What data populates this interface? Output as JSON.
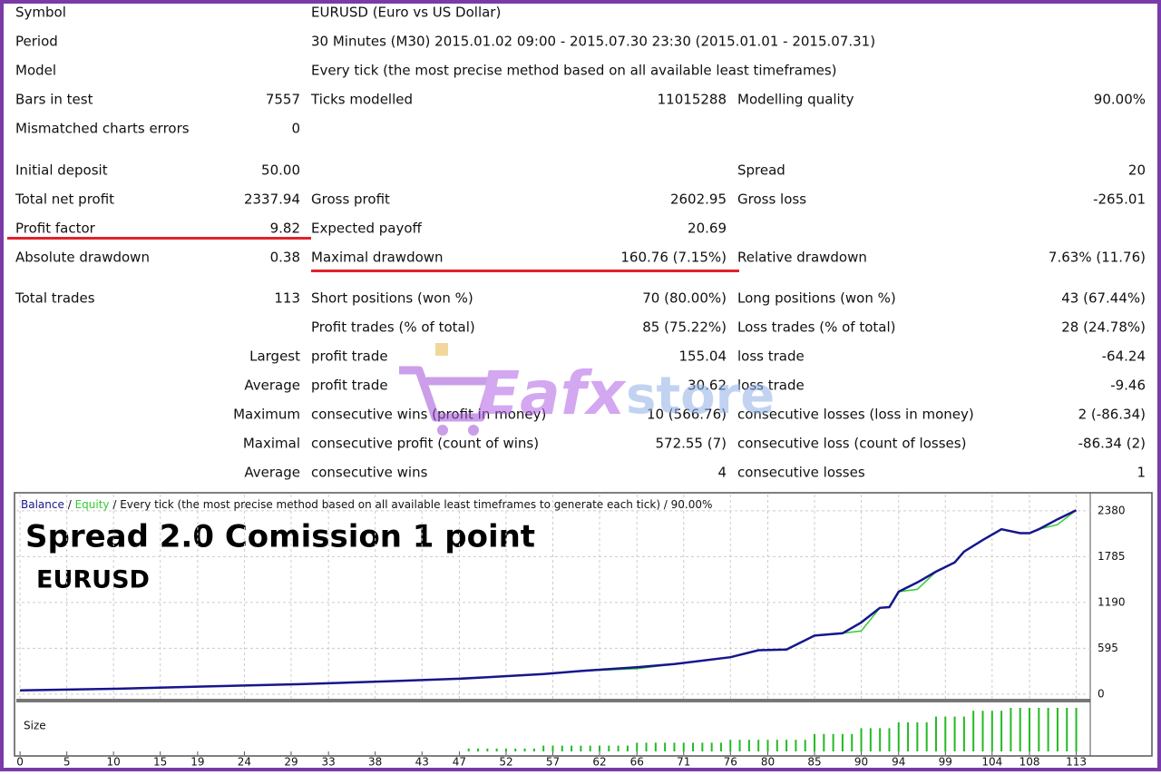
{
  "report": {
    "sections": [
      [
        [
          "Symbol",
          null,
          "EURUSD (Euro vs US Dollar)",
          null,
          null,
          null
        ],
        [
          "Period",
          null,
          "30 Minutes (M30) 2015.01.02 09:00 - 2015.07.30 23:30 (2015.01.01 - 2015.07.31)",
          null,
          null,
          null
        ],
        [
          "Model",
          null,
          "Every tick (the most precise method based on all available least timeframes)",
          null,
          null,
          null
        ],
        [
          "Bars in test",
          "7557",
          "Ticks modelled",
          "11015288",
          "Modelling quality",
          "90.00%"
        ],
        [
          "Mismatched charts errors",
          "0",
          null,
          null,
          null,
          null
        ]
      ],
      [
        [
          "Initial deposit",
          "50.00",
          null,
          null,
          "Spread",
          "20"
        ],
        [
          "Total net profit",
          "2337.94",
          "Gross profit",
          "2602.95",
          "Gross loss",
          "-265.01"
        ],
        [
          "Profit factor",
          "9.82",
          "Expected payoff",
          "20.69",
          null,
          null
        ],
        [
          "Absolute drawdown",
          "0.38",
          "Maximal drawdown",
          "160.76 (7.15%)",
          "Relative drawdown",
          "7.63% (11.76)"
        ]
      ],
      [
        [
          "Total trades",
          "113",
          "Short positions (won %)",
          "70 (80.00%)",
          "Long positions (won %)",
          "43 (67.44%)"
        ],
        [
          null,
          null,
          "Profit trades (% of total)",
          "85 (75.22%)",
          "Loss trades (% of total)",
          "28 (24.78%)"
        ],
        [
          null,
          "Largest",
          "profit trade",
          "155.04",
          "loss trade",
          "-64.24"
        ],
        [
          null,
          "Average",
          "profit trade",
          "30.62",
          "loss trade",
          "-9.46"
        ],
        [
          null,
          "Maximum",
          "consecutive wins (profit in money)",
          "10 (566.76)",
          "consecutive losses (loss in money)",
          "2 (-86.34)"
        ],
        [
          null,
          "Maximal",
          "consecutive profit (count of wins)",
          "572.55 (7)",
          "consecutive loss (count of losses)",
          "-86.34 (2)"
        ],
        [
          null,
          "Average",
          "consecutive wins",
          "4",
          "consecutive losses",
          "1"
        ]
      ]
    ]
  },
  "watermark": [
    "Eafx",
    "store"
  ],
  "chart_data": {
    "type": "line",
    "series": [
      {
        "name": "Balance",
        "color": "#16168c",
        "x": [
          0,
          10,
          20,
          30,
          40,
          47,
          50,
          56,
          60,
          66,
          70,
          76,
          79,
          82,
          85,
          88,
          90,
          92,
          93,
          94,
          96,
          98,
          100,
          101,
          103,
          105,
          107,
          108,
          109,
          111,
          113
        ],
        "values": [
          50,
          70,
          100,
          130,
          170,
          200,
          220,
          260,
          300,
          350,
          390,
          480,
          570,
          580,
          760,
          790,
          930,
          1120,
          1130,
          1330,
          1450,
          1590,
          1710,
          1850,
          2000,
          2140,
          2090,
          2090,
          2140,
          2270,
          2388
        ]
      },
      {
        "name": "Equity",
        "color": "#33cc33",
        "x": [
          0,
          10,
          20,
          30,
          40,
          47,
          50,
          56,
          60,
          66,
          70,
          76,
          79,
          82,
          85,
          88,
          90,
          92,
          93,
          94,
          96,
          98,
          100,
          101,
          103,
          105,
          107,
          108,
          109,
          111,
          113
        ],
        "values": [
          50,
          70,
          100,
          130,
          170,
          200,
          220,
          260,
          300,
          330,
          390,
          480,
          570,
          580,
          760,
          790,
          820,
          1120,
          1130,
          1330,
          1360,
          1590,
          1710,
          1850,
          2000,
          2140,
          2090,
          2090,
          2140,
          2200,
          2388
        ]
      }
    ],
    "separator": "/",
    "subtitle": "/ Every tick (the most precise method based on all available least timeframes to generate each tick) / 90.00%",
    "annotations": [
      "Spread 2.0 Comission 1 point",
      "EURUSD"
    ],
    "xlim": [
      -0.4,
      114.5
    ],
    "ylim": [
      -60,
      2590
    ],
    "xticks": [
      0,
      5,
      10,
      15,
      19,
      24,
      29,
      33,
      38,
      43,
      47,
      52,
      57,
      62,
      66,
      71,
      76,
      80,
      85,
      90,
      94,
      99,
      104,
      108,
      113
    ],
    "yticks": [
      0,
      595,
      1190,
      1785,
      2380
    ],
    "grid": true,
    "size_label": "Size",
    "size_color": "#22bb22",
    "size_x": [
      48,
      49,
      50,
      51,
      52,
      53,
      54,
      55,
      56,
      57,
      58,
      59,
      60,
      61,
      62,
      63,
      64,
      65,
      66,
      67,
      68,
      69,
      70,
      71,
      72,
      73,
      74,
      75,
      76,
      77,
      78,
      79,
      80,
      81,
      82,
      83,
      84,
      85,
      86,
      87,
      88,
      89,
      90,
      91,
      92,
      93,
      94,
      95,
      96,
      97,
      98,
      99,
      100,
      101,
      102,
      103,
      104,
      105,
      106,
      107,
      108,
      109,
      110,
      111,
      112,
      113
    ],
    "size_values": [
      0.01,
      0.01,
      0.01,
      0.01,
      0.01,
      0.01,
      0.01,
      0.01,
      0.02,
      0.02,
      0.02,
      0.02,
      0.02,
      0.02,
      0.02,
      0.02,
      0.02,
      0.02,
      0.03,
      0.03,
      0.03,
      0.03,
      0.03,
      0.03,
      0.03,
      0.03,
      0.03,
      0.03,
      0.04,
      0.04,
      0.04,
      0.04,
      0.04,
      0.04,
      0.04,
      0.04,
      0.04,
      0.06,
      0.06,
      0.06,
      0.06,
      0.06,
      0.08,
      0.08,
      0.08,
      0.08,
      0.1,
      0.1,
      0.1,
      0.1,
      0.12,
      0.12,
      0.12,
      0.12,
      0.14,
      0.14,
      0.14,
      0.14,
      0.15,
      0.15,
      0.15,
      0.15,
      0.15,
      0.15,
      0.15,
      0.15
    ]
  }
}
